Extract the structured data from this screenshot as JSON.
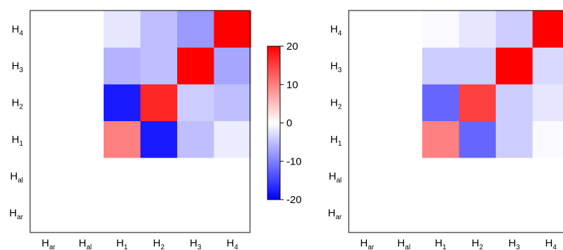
{
  "chart_data": [
    {
      "type": "heatmap",
      "title": "",
      "x_categories": [
        "ar",
        "al",
        "1",
        "2",
        "3",
        "4"
      ],
      "y_categories": [
        "ar",
        "al",
        "1",
        "2",
        "3",
        "4"
      ],
      "label_prefix": "H",
      "xlabel": "",
      "ylabel": "",
      "cells": [
        {
          "x": "1",
          "y": "1",
          "value": 10
        },
        {
          "x": "2",
          "y": "1",
          "value": -18
        },
        {
          "x": "3",
          "y": "1",
          "value": -5
        },
        {
          "x": "4",
          "y": "1",
          "value": -1.5
        },
        {
          "x": "1",
          "y": "2",
          "value": -18
        },
        {
          "x": "2",
          "y": "2",
          "value": 17
        },
        {
          "x": "3",
          "y": "2",
          "value": -4
        },
        {
          "x": "4",
          "y": "2",
          "value": -5
        },
        {
          "x": "1",
          "y": "3",
          "value": -6
        },
        {
          "x": "2",
          "y": "3",
          "value": -5
        },
        {
          "x": "3",
          "y": "3",
          "value": 20
        },
        {
          "x": "4",
          "y": "3",
          "value": -7
        },
        {
          "x": "1",
          "y": "4",
          "value": -2
        },
        {
          "x": "2",
          "y": "4",
          "value": -5
        },
        {
          "x": "3",
          "y": "4",
          "value": -8
        },
        {
          "x": "4",
          "y": "4",
          "value": 20
        }
      ],
      "color_scale": {
        "min": -20,
        "max": 20,
        "low_color": "#0000ff",
        "mid_color": "#ffffff",
        "high_color": "#ff0000"
      }
    },
    {
      "type": "heatmap",
      "title": "",
      "x_categories": [
        "ar",
        "al",
        "1",
        "2",
        "3",
        "4"
      ],
      "y_categories": [
        "ar",
        "al",
        "1",
        "2",
        "3",
        "4"
      ],
      "label_prefix": "H",
      "xlabel": "",
      "ylabel": "",
      "cells": [
        {
          "x": "1",
          "y": "1",
          "value": 10
        },
        {
          "x": "2",
          "y": "1",
          "value": -12
        },
        {
          "x": "3",
          "y": "1",
          "value": -4
        },
        {
          "x": "4",
          "y": "1",
          "value": -0.5
        },
        {
          "x": "1",
          "y": "2",
          "value": -12
        },
        {
          "x": "2",
          "y": "2",
          "value": 15
        },
        {
          "x": "3",
          "y": "2",
          "value": -4
        },
        {
          "x": "4",
          "y": "2",
          "value": -2
        },
        {
          "x": "1",
          "y": "3",
          "value": -4
        },
        {
          "x": "2",
          "y": "3",
          "value": -4
        },
        {
          "x": "3",
          "y": "3",
          "value": 20
        },
        {
          "x": "4",
          "y": "3",
          "value": -3
        },
        {
          "x": "1",
          "y": "4",
          "value": -0.5
        },
        {
          "x": "2",
          "y": "4",
          "value": -2
        },
        {
          "x": "3",
          "y": "4",
          "value": -4
        },
        {
          "x": "4",
          "y": "4",
          "value": 20
        }
      ],
      "color_scale": {
        "min": -20,
        "max": 20,
        "low_color": "#0000ff",
        "mid_color": "#ffffff",
        "high_color": "#ff0000"
      }
    }
  ],
  "colorbar": {
    "ticks": [
      20,
      10,
      0,
      -10,
      -20
    ],
    "min": -20,
    "max": 20
  }
}
